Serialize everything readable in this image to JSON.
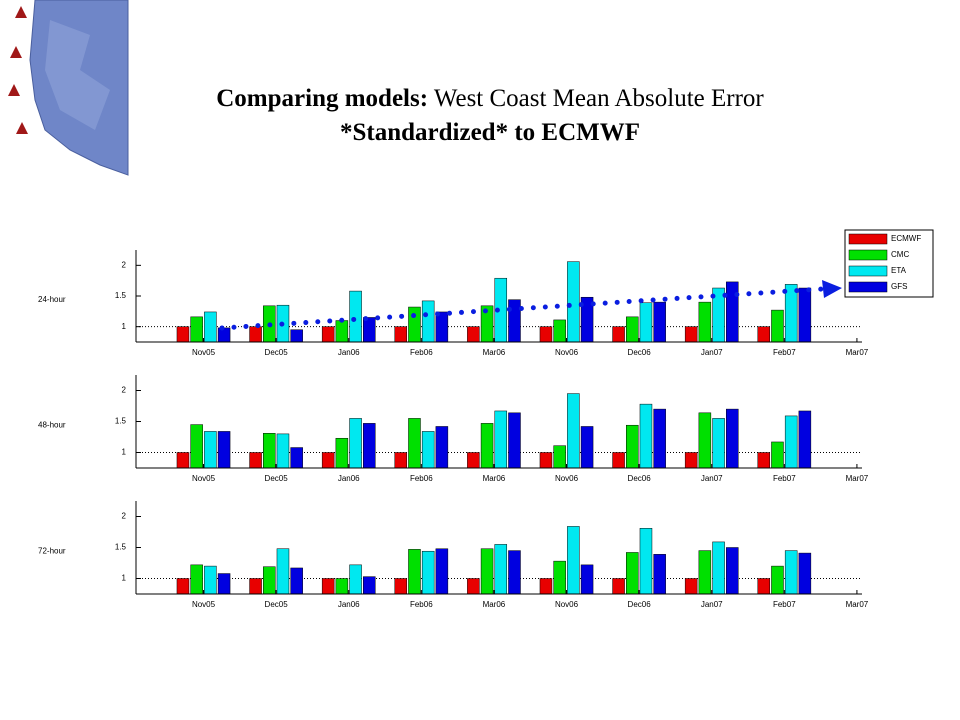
{
  "slide": {
    "title": [
      "Comparing models:",
      "West Coast Mean Absolute Error",
      "*Standardized* to ECMWF"
    ]
  },
  "chart_data": [
    {
      "type": "bar",
      "ylabel": "24-hour",
      "legend": "upper right",
      "categories": [
        "Nov05",
        "Dec05",
        "Jan06",
        "Feb06",
        "Mar06",
        "Nov06",
        "Dec06",
        "Jan07",
        "Feb07",
        "Mar07"
      ],
      "ylim": [
        0.75,
        2.25
      ],
      "yticks": [
        1,
        1.5,
        2
      ],
      "reference_line": 1,
      "series": [
        {
          "name": "ECMWF",
          "color": "#e80000",
          "values": [
            1,
            1,
            1,
            1,
            1,
            1,
            1,
            1,
            1,
            null
          ]
        },
        {
          "name": "CMC",
          "color": "#00e000",
          "values": [
            1.16,
            1.34,
            1.1,
            1.32,
            1.34,
            1.11,
            1.16,
            1.4,
            1.27,
            null
          ]
        },
        {
          "name": "ETA",
          "color": "#00e8f0",
          "values": [
            1.24,
            1.35,
            1.58,
            1.42,
            1.79,
            2.06,
            1.39,
            1.63,
            1.69,
            null
          ]
        },
        {
          "name": "GFS",
          "color": "#0000e0",
          "values": [
            0.98,
            0.95,
            1.15,
            1.24,
            1.44,
            1.48,
            1.4,
            1.73,
            1.63,
            null
          ]
        }
      ]
    },
    {
      "type": "bar",
      "ylabel": "48-hour",
      "legend": null,
      "categories": [
        "Nov05",
        "Dec05",
        "Jan06",
        "Feb06",
        "Mar06",
        "Nov06",
        "Dec06",
        "Jan07",
        "Feb07",
        "Mar07"
      ],
      "ylim": [
        0.75,
        2.25
      ],
      "yticks": [
        1,
        1.5,
        2
      ],
      "reference_line": 1,
      "series": [
        {
          "name": "ECMWF",
          "color": "#e80000",
          "values": [
            1,
            1,
            1,
            1,
            1,
            1,
            1,
            1,
            1,
            null
          ]
        },
        {
          "name": "CMC",
          "color": "#00e000",
          "values": [
            1.45,
            1.31,
            1.23,
            1.55,
            1.47,
            1.11,
            1.44,
            1.64,
            1.17,
            null
          ]
        },
        {
          "name": "ETA",
          "color": "#00e8f0",
          "values": [
            1.34,
            1.3,
            1.55,
            1.34,
            1.67,
            1.95,
            1.78,
            1.55,
            1.59,
            null
          ]
        },
        {
          "name": "GFS",
          "color": "#0000e0",
          "values": [
            1.34,
            1.08,
            1.47,
            1.42,
            1.64,
            1.42,
            1.7,
            1.7,
            1.67,
            null
          ]
        }
      ]
    },
    {
      "type": "bar",
      "ylabel": "72-hour",
      "legend": null,
      "categories": [
        "Nov05",
        "Dec05",
        "Jan06",
        "Feb06",
        "Mar06",
        "Nov06",
        "Dec06",
        "Jan07",
        "Feb07",
        "Mar07"
      ],
      "ylim": [
        0.75,
        2.25
      ],
      "yticks": [
        1,
        1.5,
        2
      ],
      "reference_line": 1,
      "series": [
        {
          "name": "ECMWF",
          "color": "#e80000",
          "values": [
            1,
            1,
            1,
            1,
            1,
            1,
            1,
            1,
            1,
            null
          ]
        },
        {
          "name": "CMC",
          "color": "#00e000",
          "values": [
            1.22,
            1.19,
            1.0,
            1.47,
            1.48,
            1.28,
            1.42,
            1.45,
            1.2,
            null
          ]
        },
        {
          "name": "ETA",
          "color": "#00e8f0",
          "values": [
            1.2,
            1.48,
            1.22,
            1.44,
            1.55,
            1.84,
            1.81,
            1.59,
            1.45,
            null
          ]
        },
        {
          "name": "GFS",
          "color": "#0000e0",
          "values": [
            1.08,
            1.17,
            1.03,
            1.48,
            1.45,
            1.22,
            1.39,
            1.5,
            1.41,
            null
          ]
        }
      ]
    }
  ]
}
